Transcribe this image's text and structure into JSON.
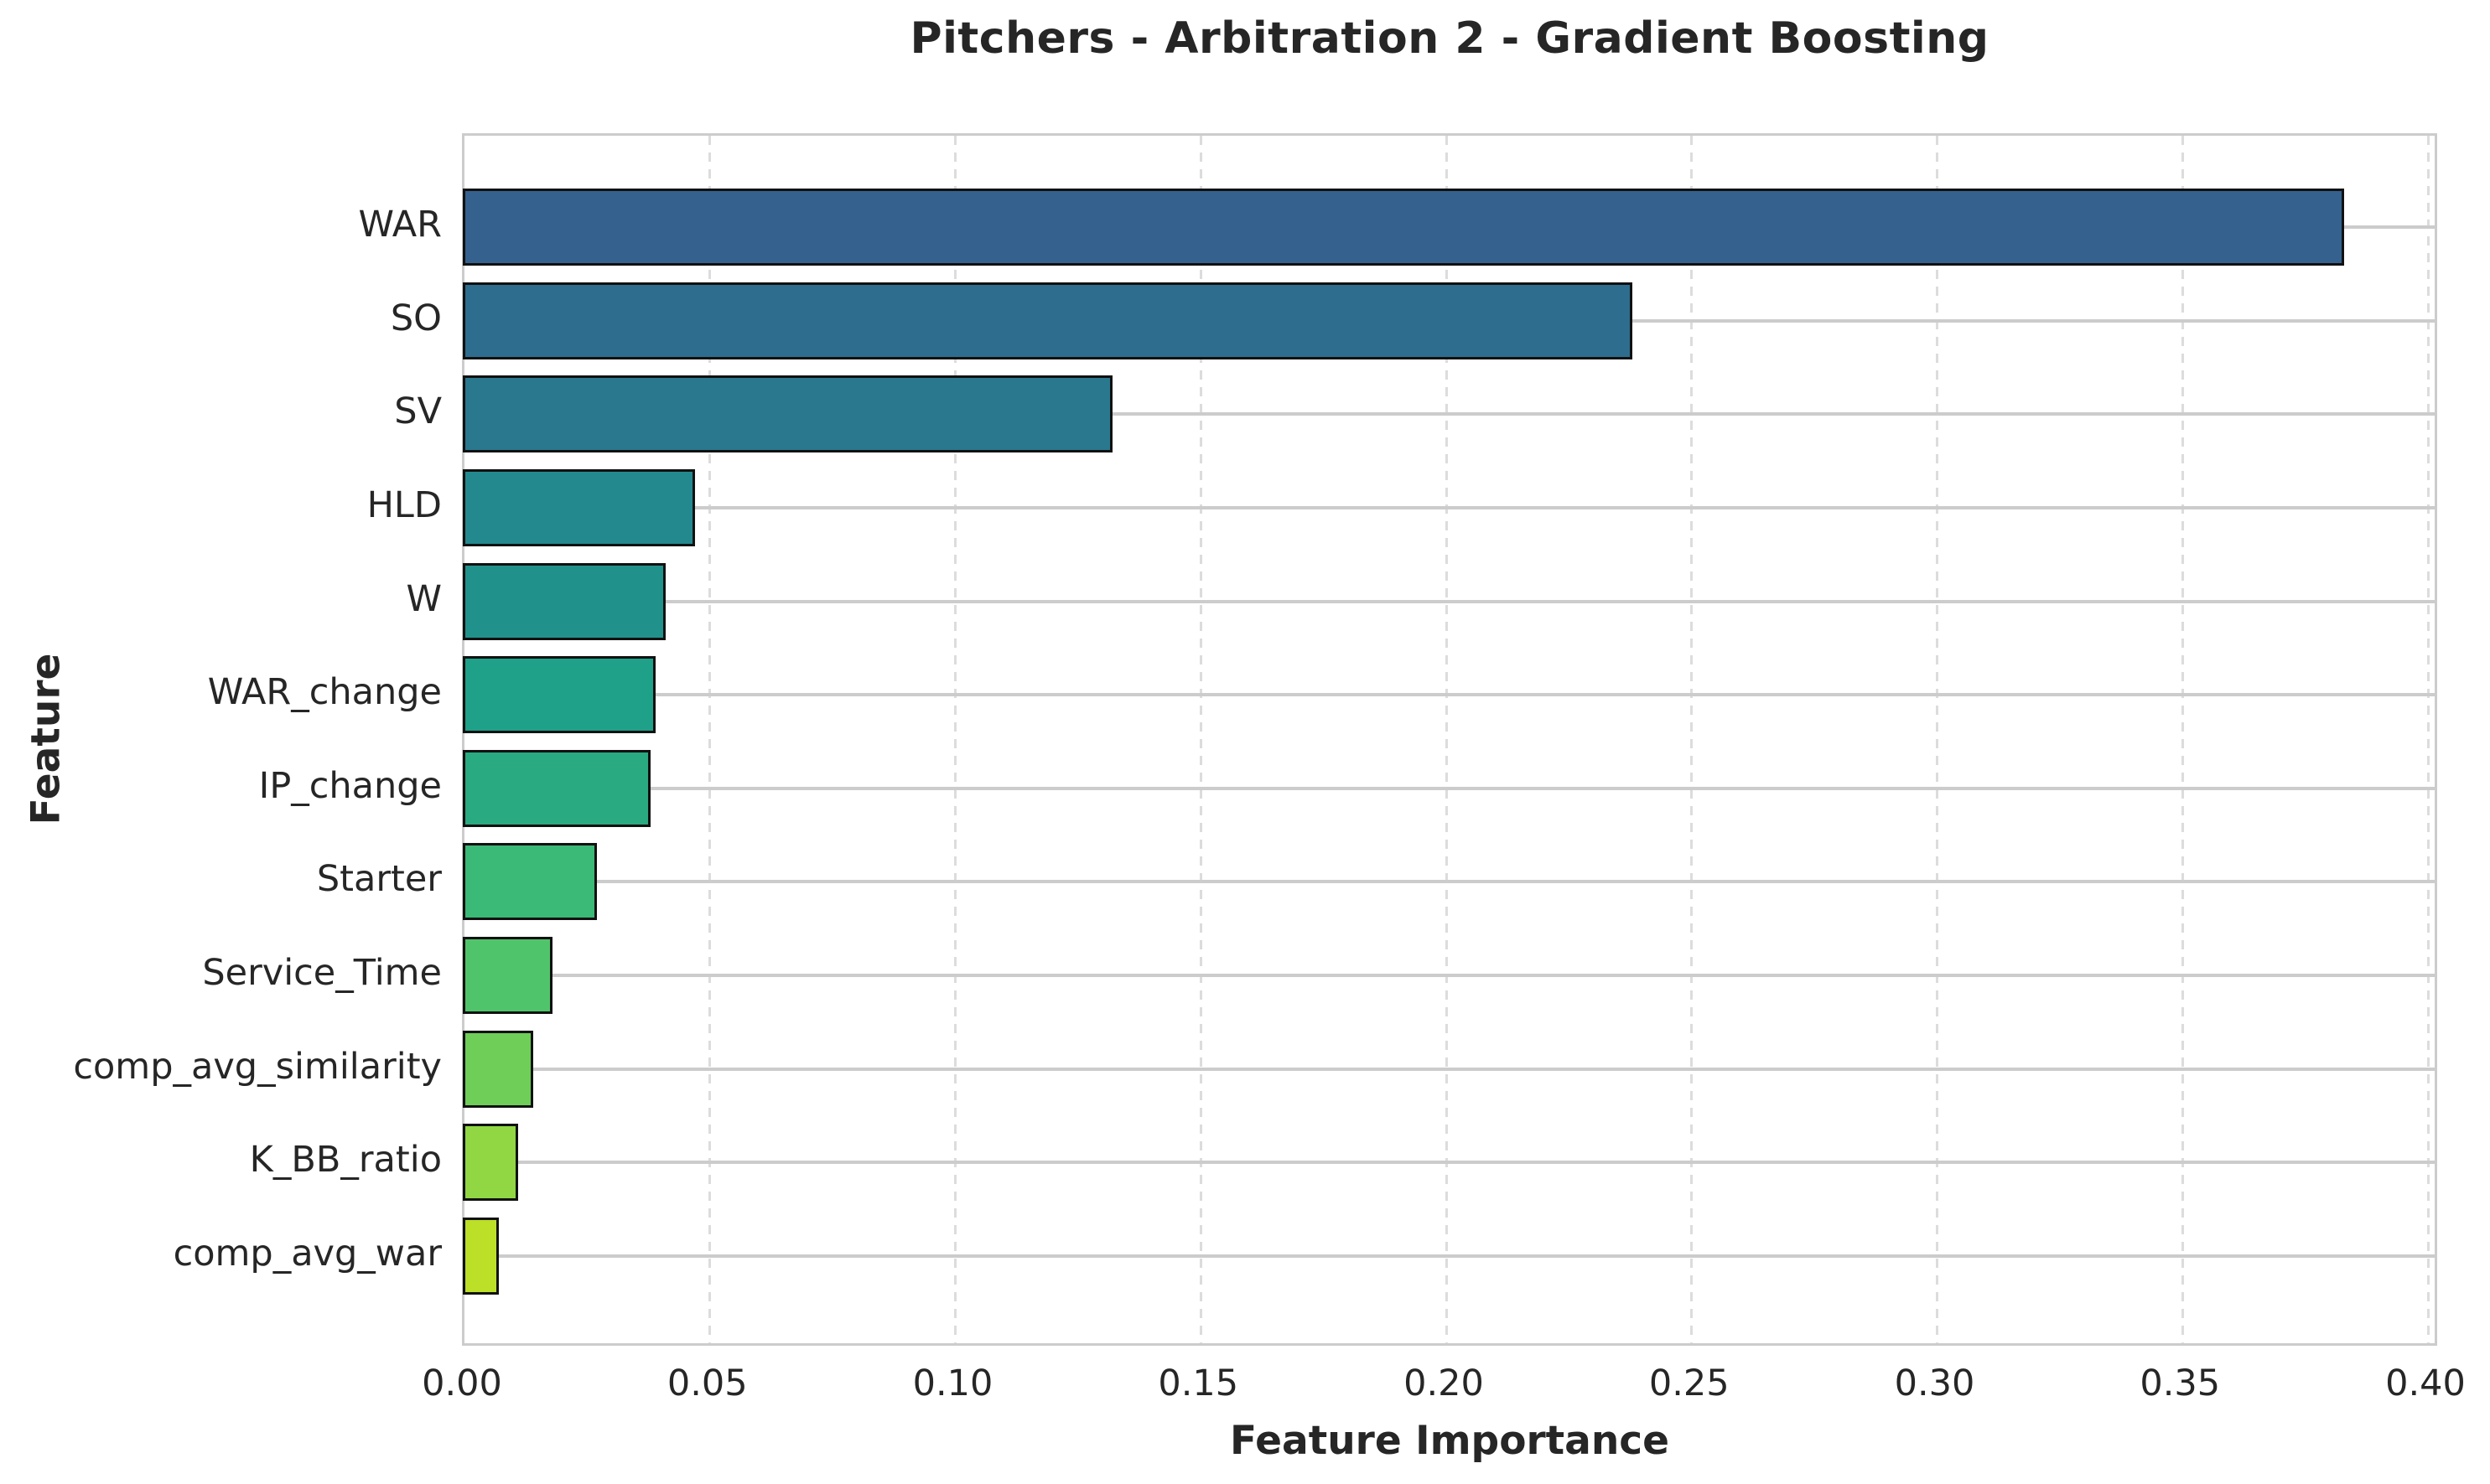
{
  "chart_data": {
    "type": "bar",
    "orientation": "horizontal",
    "title": "Pitchers - Arbitration 2 - Gradient Boosting",
    "xlabel": "Feature Importance",
    "ylabel": "Feature",
    "xlim": [
      0.0,
      0.4
    ],
    "xticks": [
      {
        "value": 0.0,
        "label": "0.00"
      },
      {
        "value": 0.05,
        "label": "0.05"
      },
      {
        "value": 0.1,
        "label": "0.10"
      },
      {
        "value": 0.15,
        "label": "0.15"
      },
      {
        "value": 0.2,
        "label": "0.20"
      },
      {
        "value": 0.25,
        "label": "0.25"
      },
      {
        "value": 0.3,
        "label": "0.30"
      },
      {
        "value": 0.35,
        "label": "0.35"
      },
      {
        "value": 0.4,
        "label": "0.40"
      }
    ],
    "grid": {
      "vertical": "dashed",
      "horizontal": "solid",
      "legend": "none"
    },
    "categories": [
      "WAR",
      "SO",
      "SV",
      "HLD",
      "W",
      "WAR_change",
      "IP_change",
      "Starter",
      "Service_Time",
      "comp_avg_similarity",
      "K_BB_ratio",
      "comp_avg_war"
    ],
    "values": [
      0.383,
      0.238,
      0.132,
      0.047,
      0.041,
      0.039,
      0.038,
      0.027,
      0.018,
      0.014,
      0.011,
      0.007
    ],
    "bar_colors": [
      "#35618f",
      "#2e6d8e",
      "#2a788e",
      "#23898e",
      "#21928b",
      "#1fa088",
      "#29aa80",
      "#3bb976",
      "#50c46a",
      "#6ece58",
      "#90d743",
      "#bcdf27"
    ],
    "bar_edge_color": "#111111",
    "text_color": "#262626",
    "grid_color": "#cccccc",
    "spine_color": "#cccccc",
    "background_color": "#ffffff"
  }
}
